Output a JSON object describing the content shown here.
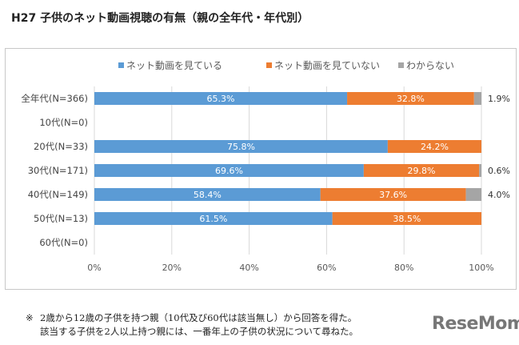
{
  "title": "H27 子供のネット動画視聴の有無（親の全年代・年代別）",
  "chart_data": {
    "type": "bar",
    "orientation": "horizontal",
    "stacked": true,
    "categories": [
      "全年代(N=366)",
      "10代(N=0)",
      "20代(N=33)",
      "30代(N=171)",
      "40代(N=149)",
      "50代(N=13)",
      "60代(N=0)"
    ],
    "series": [
      {
        "name": "ネット動画を見ている",
        "color": "#5b9bd5",
        "values": [
          65.3,
          null,
          75.8,
          69.6,
          58.4,
          61.5,
          null
        ]
      },
      {
        "name": "ネット動画を見ていない",
        "color": "#ed7d31",
        "values": [
          32.8,
          null,
          24.2,
          29.8,
          37.6,
          38.5,
          null
        ]
      },
      {
        "name": "わからない",
        "color": "#a5a5a5",
        "values": [
          1.9,
          null,
          0,
          0.6,
          4.0,
          0,
          null
        ]
      }
    ],
    "data_labels": {
      "series0": [
        "65.3%",
        "",
        "75.8%",
        "69.6%",
        "58.4%",
        "61.5%",
        ""
      ],
      "series1": [
        "32.8%",
        "",
        "24.2%",
        "29.8%",
        "37.6%",
        "38.5%",
        ""
      ],
      "series2": [
        "1.9%",
        "",
        "",
        "0.6%",
        "4.0%",
        "",
        ""
      ]
    },
    "x_ticks": [
      "0%",
      "20%",
      "40%",
      "60%",
      "80%",
      "100%"
    ],
    "xlim": [
      0,
      100
    ],
    "grid": true,
    "legend": "top"
  },
  "note": {
    "mark": "※",
    "lines": [
      "2歳から12歳の子供を持つ親（10代及び60代は該当無し）から回答を得た。",
      "該当する子供を2人以上持つ親には、一番年上の子供の状況について尋ねた。"
    ]
  },
  "logo": "ReseMom"
}
